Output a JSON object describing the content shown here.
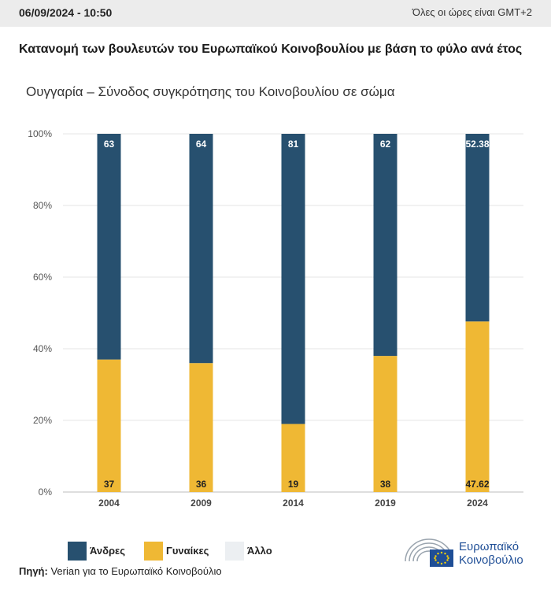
{
  "header": {
    "datetime": "06/09/2024 - 10:50",
    "timezone_note": "Όλες οι ώρες είναι GMT+2"
  },
  "colors": {
    "men": "#27506f",
    "women": "#efb834",
    "other": "#eceff2",
    "grid": "#e4e4e4",
    "axis_text": "#555555",
    "logo_blue": "#1f4e96"
  },
  "chart_data": {
    "type": "bar",
    "stacked": true,
    "normalized": true,
    "title": "Κατανομή των βουλευτών του Ευρωπαϊκού Κοινοβουλίου με βάση το φύλο ανά έτος",
    "subtitle": "Ουγγαρία – Σύνοδος συγκρότησης του Κοινοβουλίου σε σώμα",
    "categories": [
      "2004",
      "2009",
      "2014",
      "2019",
      "2024"
    ],
    "series": [
      {
        "name": "Γυναίκες",
        "key": "women",
        "values": [
          37,
          36,
          19,
          38,
          47.62
        ]
      },
      {
        "name": "Άνδρες",
        "key": "men",
        "values": [
          63,
          64,
          81,
          62,
          52.38
        ]
      },
      {
        "name": "Άλλο",
        "key": "other",
        "values": [
          0,
          0,
          0,
          0,
          0
        ]
      }
    ],
    "y_ticks": [
      "0%",
      "20%",
      "40%",
      "60%",
      "80%",
      "100%"
    ],
    "ylim": [
      0,
      100
    ],
    "grid": true,
    "legend_position": "bottom-left"
  },
  "legend": [
    {
      "label": "Άνδρες",
      "key": "men"
    },
    {
      "label": "Γυναίκες",
      "key": "women"
    },
    {
      "label": "Άλλο",
      "key": "other"
    }
  ],
  "source": {
    "label": "Πηγή:",
    "text": "Verian για το Ευρωπαϊκό Κοινοβούλιο"
  },
  "logo": {
    "line1": "Ευρωπαϊκό",
    "line2": "Κοινοβούλιο"
  }
}
